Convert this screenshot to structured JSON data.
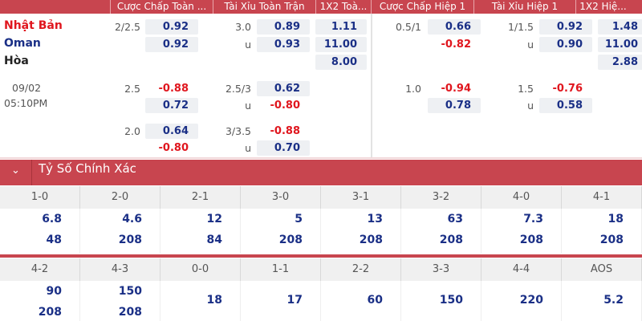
{
  "colors": {
    "header": "#c8454f",
    "positive": "#1a2f86",
    "negative": "#e0161e",
    "home": "#e0161e",
    "away": "#1a2f86"
  },
  "headers": [
    "Cược Chấp Toàn ...",
    "Tài Xỉu Toàn Trận",
    "1X2 Toà...",
    "Cược Chấp Hiệp 1",
    "Tài Xỉu Hiệp 1",
    "1X2 Hiệ..."
  ],
  "match": {
    "home": "Nhật Bản",
    "away": "Oman",
    "draw": "Hòa",
    "date": "09/02",
    "time": "05:10PM"
  },
  "markets": [
    {
      "name": "ft-handicap",
      "rows": [
        {
          "line": "2/2.5",
          "value": "0.92"
        },
        {
          "line": "",
          "value": "0.92"
        },
        null,
        {
          "line": "2.5",
          "value": "-0.88"
        },
        {
          "line": "",
          "value": "0.72"
        },
        {
          "line": "2.0",
          "value": "0.64"
        },
        {
          "line": "",
          "value": "-0.80"
        }
      ]
    },
    {
      "name": "ft-over-under",
      "rows": [
        {
          "line": "3.0",
          "value": "0.89"
        },
        {
          "line": "u",
          "value": "0.93"
        },
        null,
        {
          "line": "2.5/3",
          "value": "0.62"
        },
        {
          "line": "u",
          "value": "-0.80"
        },
        {
          "line": "3/3.5",
          "value": "-0.88"
        },
        {
          "line": "u",
          "value": "0.70"
        }
      ]
    },
    {
      "name": "ft-1x2",
      "rows": [
        {
          "line": "",
          "value": "1.11"
        },
        {
          "line": "",
          "value": "11.00"
        },
        {
          "line": "",
          "value": "8.00"
        }
      ]
    },
    {
      "name": "h1-handicap",
      "rows": [
        {
          "line": "0.5/1",
          "value": "0.66"
        },
        {
          "line": "",
          "value": "-0.82"
        },
        null,
        {
          "line": "1.0",
          "value": "-0.94"
        },
        {
          "line": "",
          "value": "0.78"
        }
      ]
    },
    {
      "name": "h1-over-under",
      "rows": [
        {
          "line": "1/1.5",
          "value": "0.92"
        },
        {
          "line": "u",
          "value": "0.90"
        },
        null,
        {
          "line": "1.5",
          "value": "-0.76"
        },
        {
          "line": "u",
          "value": "0.58"
        }
      ]
    },
    {
      "name": "h1-1x2",
      "rows": [
        {
          "line": "",
          "value": "1.48"
        },
        {
          "line": "",
          "value": "11.00"
        },
        {
          "line": "",
          "value": "2.88"
        }
      ]
    }
  ],
  "correct_score": {
    "title": "Tỷ Số Chính Xác",
    "collapse_icon": "chevron-down-icon",
    "rows": [
      [
        {
          "score": "1-0",
          "odds": [
            "6.8",
            "48"
          ]
        },
        {
          "score": "2-0",
          "odds": [
            "4.6",
            "208"
          ]
        },
        {
          "score": "2-1",
          "odds": [
            "12",
            "84"
          ]
        },
        {
          "score": "3-0",
          "odds": [
            "5",
            "208"
          ]
        },
        {
          "score": "3-1",
          "odds": [
            "13",
            "208"
          ]
        },
        {
          "score": "3-2",
          "odds": [
            "63",
            "208"
          ]
        },
        {
          "score": "4-0",
          "odds": [
            "7.3",
            "208"
          ]
        },
        {
          "score": "4-1",
          "odds": [
            "18",
            "208"
          ]
        }
      ],
      [
        {
          "score": "4-2",
          "odds": [
            "90",
            "208"
          ]
        },
        {
          "score": "4-3",
          "odds": [
            "150",
            "208"
          ]
        },
        {
          "score": "0-0",
          "odds": [
            "18"
          ]
        },
        {
          "score": "1-1",
          "odds": [
            "17"
          ]
        },
        {
          "score": "2-2",
          "odds": [
            "60"
          ]
        },
        {
          "score": "3-3",
          "odds": [
            "150"
          ]
        },
        {
          "score": "4-4",
          "odds": [
            "220"
          ]
        },
        {
          "score": "AOS",
          "odds": [
            "5.2"
          ]
        }
      ]
    ]
  }
}
